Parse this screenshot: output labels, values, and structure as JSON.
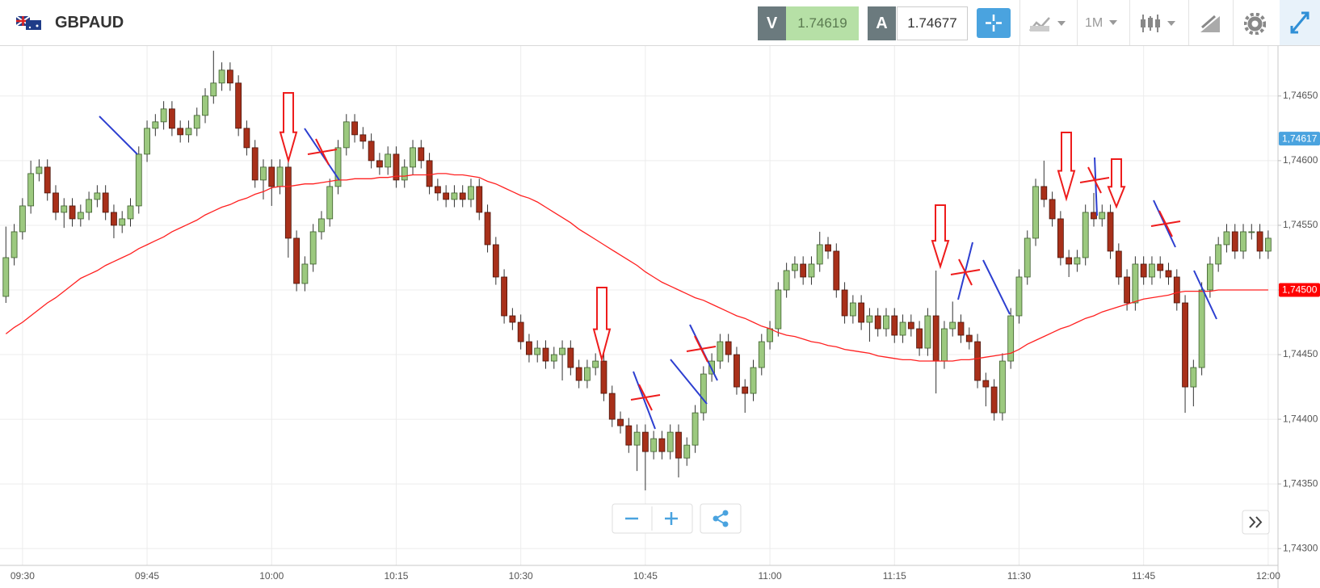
{
  "header": {
    "symbol": "GBPAUD",
    "sell": {
      "letter": "V",
      "price": "1.74619"
    },
    "buy": {
      "letter": "A",
      "price": "1.74677"
    },
    "timeframe": "1M"
  },
  "chart_data": {
    "type": "candlestick",
    "categories": [
      null,
      null,
      "09:30",
      null,
      null,
      null,
      null,
      null,
      null,
      null,
      null,
      null,
      null,
      null,
      null,
      null,
      null,
      "09:45",
      null,
      null,
      null,
      null,
      null,
      null,
      null,
      null,
      null,
      null,
      null,
      null,
      null,
      null,
      "10:00",
      null,
      null,
      null,
      null,
      null,
      null,
      null,
      null,
      null,
      null,
      null,
      null,
      null,
      null,
      "10:15",
      null,
      null,
      null,
      null,
      null,
      null,
      null,
      null,
      null,
      null,
      null,
      null,
      null,
      null,
      "10:30",
      null,
      null,
      null,
      null,
      null,
      null,
      null,
      null,
      null,
      null,
      null,
      null,
      null,
      null,
      "10:45",
      null,
      null,
      null,
      null,
      null,
      null,
      null,
      null,
      null,
      null,
      null,
      null,
      null,
      null,
      "11:00",
      null,
      null,
      null,
      null,
      null,
      null,
      null,
      null,
      null,
      null,
      null,
      null,
      null,
      null,
      "11:15",
      null,
      null,
      null,
      null,
      null,
      null,
      null,
      null,
      null,
      null,
      null,
      null,
      null,
      null,
      "11:30",
      null,
      null,
      null,
      null,
      null,
      null,
      null,
      null,
      null,
      null,
      null,
      null,
      null,
      null,
      "11:45",
      null,
      null,
      null,
      null,
      null,
      null,
      null,
      null,
      null,
      null,
      null,
      null,
      null,
      null,
      "12:00"
    ],
    "open": [
      1.74495,
      1.74525,
      1.74545,
      1.74565,
      1.7459,
      1.74595,
      1.74575,
      1.7456,
      1.74565,
      1.74555,
      1.7456,
      1.7457,
      1.74575,
      1.7456,
      1.7455,
      1.74555,
      1.74565,
      1.74605,
      1.74625,
      1.7463,
      1.7464,
      1.74625,
      1.7462,
      1.74625,
      1.74635,
      1.7465,
      1.7466,
      1.7467,
      1.7466,
      1.74625,
      1.7461,
      1.74585,
      1.74595,
      1.7458,
      1.74595,
      1.7454,
      1.74505,
      1.7452,
      1.74545,
      1.74555,
      1.7458,
      1.7461,
      1.7463,
      1.7462,
      1.74615,
      1.746,
      1.74595,
      1.74605,
      1.74585,
      1.74595,
      1.7461,
      1.746,
      1.7458,
      1.74575,
      1.7457,
      1.74575,
      1.7457,
      1.7458,
      1.7456,
      1.74535,
      1.7451,
      1.7448,
      1.74475,
      1.7446,
      1.7445,
      1.74455,
      1.74445,
      1.7445,
      1.74455,
      1.7444,
      1.7443,
      1.7444,
      1.74445,
      1.7442,
      1.744,
      1.74395,
      1.7438,
      1.7439,
      1.74375,
      1.74385,
      1.74375,
      1.7439,
      1.7437,
      1.7438,
      1.74405,
      1.74435,
      1.74445,
      1.7446,
      1.7445,
      1.74425,
      1.7442,
      1.7444,
      1.7446,
      1.7447,
      1.745,
      1.74515,
      1.7452,
      1.7451,
      1.7452,
      1.74535,
      1.7453,
      1.745,
      1.7448,
      1.7449,
      1.74475,
      1.7448,
      1.7447,
      1.7448,
      1.74465,
      1.74475,
      1.7447,
      1.74455,
      1.7448,
      1.74445,
      1.7447,
      1.74475,
      1.74465,
      1.7446,
      1.7443,
      1.74425,
      1.74405,
      1.74445,
      1.7448,
      1.7451,
      1.7454,
      1.7458,
      1.7457,
      1.74555,
      1.74525,
      1.7452,
      1.74525,
      1.7456,
      1.74555,
      1.7456,
      1.7453,
      1.7451,
      1.7449,
      1.7452,
      1.7451,
      1.7452,
      1.74515,
      1.7451,
      1.7449,
      1.74425,
      1.7444,
      1.745,
      1.7452,
      1.74535,
      1.74545,
      1.7453,
      1.74545,
      1.74545,
      1.7453
    ],
    "high": [
      1.74549,
      1.74551,
      1.74571,
      1.746,
      1.74601,
      1.74601,
      1.74581,
      1.74571,
      1.74571,
      1.74566,
      1.74576,
      1.74581,
      1.74581,
      1.74566,
      1.74561,
      1.74571,
      1.74611,
      1.74631,
      1.74636,
      1.74646,
      1.74646,
      1.74631,
      1.74631,
      1.74641,
      1.74656,
      1.74685,
      1.74676,
      1.74676,
      1.74666,
      1.74631,
      1.74616,
      1.74601,
      1.74601,
      1.74601,
      1.74601,
      1.74546,
      1.74526,
      1.74551,
      1.74561,
      1.74586,
      1.74616,
      1.74636,
      1.74636,
      1.74626,
      1.74621,
      1.74606,
      1.74611,
      1.74611,
      1.74601,
      1.74616,
      1.74616,
      1.74606,
      1.74586,
      1.74581,
      1.74581,
      1.74581,
      1.74586,
      1.74586,
      1.74566,
      1.74541,
      1.74516,
      1.74486,
      1.74481,
      1.74466,
      1.74461,
      1.74461,
      1.74456,
      1.74461,
      1.74461,
      1.74446,
      1.74446,
      1.74451,
      1.74451,
      1.74426,
      1.74406,
      1.74401,
      1.74396,
      1.74396,
      1.74391,
      1.74391,
      1.74396,
      1.74396,
      1.74386,
      1.74411,
      1.74441,
      1.74451,
      1.74466,
      1.74466,
      1.74456,
      1.74431,
      1.74446,
      1.74466,
      1.74476,
      1.74506,
      1.74521,
      1.74526,
      1.74526,
      1.74526,
      1.74545,
      1.74541,
      1.74536,
      1.74506,
      1.74496,
      1.74496,
      1.74486,
      1.74486,
      1.74486,
      1.74486,
      1.74481,
      1.74481,
      1.74476,
      1.74486,
      1.74515,
      1.74476,
      1.74491,
      1.74481,
      1.74471,
      1.74466,
      1.74436,
      1.74431,
      1.74451,
      1.74486,
      1.74516,
      1.74546,
      1.74586,
      1.746,
      1.74576,
      1.74561,
      1.74531,
      1.74531,
      1.74566,
      1.74575,
      1.74566,
      1.74566,
      1.74536,
      1.74516,
      1.74526,
      1.74526,
      1.74526,
      1.74526,
      1.74521,
      1.74516,
      1.74496,
      1.74446,
      1.74506,
      1.74526,
      1.74541,
      1.74551,
      1.74551,
      1.74551,
      1.74551,
      1.74551,
      1.74546
    ],
    "low": [
      1.7449,
      1.74519,
      1.74539,
      1.74559,
      1.74584,
      1.74569,
      1.74554,
      1.74548,
      1.74549,
      1.74549,
      1.74554,
      1.74564,
      1.74554,
      1.7454,
      1.74544,
      1.74549,
      1.74559,
      1.74599,
      1.74619,
      1.74624,
      1.74619,
      1.74614,
      1.74614,
      1.74619,
      1.74629,
      1.74644,
      1.74654,
      1.74654,
      1.74619,
      1.74604,
      1.74579,
      1.7457,
      1.74565,
      1.74574,
      1.74525,
      1.74499,
      1.74499,
      1.74514,
      1.74539,
      1.74549,
      1.74574,
      1.74604,
      1.74614,
      1.74609,
      1.74594,
      1.74589,
      1.74589,
      1.74579,
      1.74579,
      1.74589,
      1.74594,
      1.74574,
      1.74569,
      1.74564,
      1.74564,
      1.74564,
      1.74564,
      1.74554,
      1.74529,
      1.74504,
      1.74474,
      1.74469,
      1.74454,
      1.74444,
      1.74444,
      1.74439,
      1.74439,
      1.7443,
      1.74434,
      1.74424,
      1.74424,
      1.74434,
      1.74414,
      1.74394,
      1.74389,
      1.74374,
      1.7436,
      1.74345,
      1.74369,
      1.74369,
      1.74369,
      1.74355,
      1.74364,
      1.74374,
      1.74399,
      1.74429,
      1.74439,
      1.74444,
      1.74419,
      1.74405,
      1.74414,
      1.74434,
      1.74454,
      1.74464,
      1.74494,
      1.74509,
      1.74504,
      1.74504,
      1.74514,
      1.74524,
      1.74494,
      1.74474,
      1.74474,
      1.74469,
      1.7446,
      1.74464,
      1.74464,
      1.74459,
      1.74459,
      1.74464,
      1.74449,
      1.74449,
      1.7442,
      1.74439,
      1.74464,
      1.74459,
      1.74454,
      1.74424,
      1.7441,
      1.74399,
      1.74399,
      1.74439,
      1.74474,
      1.74504,
      1.74534,
      1.74564,
      1.74549,
      1.74519,
      1.7451,
      1.74514,
      1.74519,
      1.74549,
      1.74549,
      1.74524,
      1.74504,
      1.74484,
      1.74484,
      1.74504,
      1.74504,
      1.74509,
      1.74504,
      1.74484,
      1.74405,
      1.7441,
      1.74434,
      1.74494,
      1.74514,
      1.74529,
      1.74524,
      1.74524,
      1.74539,
      1.74524,
      1.74524
    ],
    "close": [
      1.74525,
      1.74545,
      1.74565,
      1.7459,
      1.74595,
      1.74575,
      1.7456,
      1.74565,
      1.74555,
      1.7456,
      1.7457,
      1.74575,
      1.7456,
      1.7455,
      1.74555,
      1.74565,
      1.74605,
      1.74625,
      1.7463,
      1.7464,
      1.74625,
      1.7462,
      1.74625,
      1.74635,
      1.7465,
      1.7466,
      1.7467,
      1.7466,
      1.74625,
      1.7461,
      1.74585,
      1.74595,
      1.7458,
      1.74595,
      1.7454,
      1.74505,
      1.7452,
      1.74545,
      1.74555,
      1.7458,
      1.7461,
      1.7463,
      1.7462,
      1.74615,
      1.746,
      1.74595,
      1.74605,
      1.74585,
      1.74595,
      1.7461,
      1.746,
      1.7458,
      1.74575,
      1.7457,
      1.74575,
      1.7457,
      1.7458,
      1.7456,
      1.74535,
      1.7451,
      1.7448,
      1.74475,
      1.7446,
      1.7445,
      1.74455,
      1.74445,
      1.7445,
      1.74455,
      1.7444,
      1.7443,
      1.7444,
      1.74445,
      1.7442,
      1.744,
      1.74395,
      1.7438,
      1.7439,
      1.74375,
      1.74385,
      1.74375,
      1.7439,
      1.7437,
      1.7438,
      1.74405,
      1.74435,
      1.74445,
      1.7446,
      1.7445,
      1.74425,
      1.7442,
      1.7444,
      1.7446,
      1.7447,
      1.745,
      1.74515,
      1.7452,
      1.7451,
      1.7452,
      1.74535,
      1.7453,
      1.745,
      1.7448,
      1.7449,
      1.74475,
      1.7448,
      1.7447,
      1.7448,
      1.74465,
      1.74475,
      1.7447,
      1.74455,
      1.7448,
      1.74445,
      1.7447,
      1.74475,
      1.74465,
      1.7446,
      1.7443,
      1.74425,
      1.74405,
      1.74445,
      1.7448,
      1.7451,
      1.7454,
      1.7458,
      1.7457,
      1.74555,
      1.74525,
      1.7452,
      1.74525,
      1.7456,
      1.74555,
      1.7456,
      1.7453,
      1.7451,
      1.7449,
      1.7452,
      1.7451,
      1.7452,
      1.74515,
      1.7451,
      1.7449,
      1.74425,
      1.7444,
      1.745,
      1.7452,
      1.74535,
      1.74545,
      1.7453,
      1.74545,
      1.74545,
      1.7453,
      1.7454
    ],
    "up_color": "#9cc97f",
    "down_color": "#a8301a",
    "ma": {
      "color": "#ff2020",
      "values": [
        1.74466,
        1.74471,
        1.74475,
        1.7448,
        1.74485,
        1.7449,
        1.74494,
        1.74499,
        1.74504,
        1.74509,
        1.74512,
        1.74515,
        1.74519,
        1.74522,
        1.74525,
        1.74528,
        1.74532,
        1.74535,
        1.74538,
        1.74541,
        1.74545,
        1.74548,
        1.74551,
        1.74554,
        1.74558,
        1.74561,
        1.74564,
        1.74566,
        1.74569,
        1.74571,
        1.74574,
        1.74576,
        1.74579,
        1.7458,
        1.7458,
        1.74581,
        1.74582,
        1.74582,
        1.74583,
        1.74584,
        1.74585,
        1.74585,
        1.74586,
        1.74586,
        1.74586,
        1.74587,
        1.74587,
        1.74588,
        1.74588,
        1.74589,
        1.74589,
        1.74589,
        1.7459,
        1.7459,
        1.74589,
        1.74589,
        1.74588,
        1.74587,
        1.74584,
        1.74582,
        1.74579,
        1.74576,
        1.74573,
        1.74571,
        1.74568,
        1.74564,
        1.7456,
        1.74556,
        1.74552,
        1.74547,
        1.74543,
        1.74539,
        1.74535,
        1.74531,
        1.74527,
        1.74523,
        1.74519,
        1.74514,
        1.7451,
        1.74506,
        1.74503,
        1.745,
        1.74497,
        1.74494,
        1.74492,
        1.74489,
        1.74486,
        1.74483,
        1.7448,
        1.74478,
        1.74475,
        1.74472,
        1.7447,
        1.74467,
        1.74465,
        1.74464,
        1.74462,
        1.7446,
        1.74459,
        1.74457,
        1.74456,
        1.74454,
        1.74453,
        1.74452,
        1.74451,
        1.74449,
        1.74448,
        1.74447,
        1.74446,
        1.74446,
        1.74445,
        1.74445,
        1.74445,
        1.74445,
        1.74445,
        1.74446,
        1.74446,
        1.74447,
        1.74448,
        1.74449,
        1.7445,
        1.74451,
        1.74454,
        1.74458,
        1.74461,
        1.74464,
        1.74467,
        1.7447,
        1.74472,
        1.74475,
        1.74478,
        1.7448,
        1.74483,
        1.74485,
        1.74487,
        1.74489,
        1.74491,
        1.74493,
        1.74494,
        1.74495,
        1.74496,
        1.74498,
        1.74499,
        1.74499,
        1.74499,
        1.74499,
        1.745,
        1.745,
        1.745,
        1.745,
        1.745,
        1.745,
        1.745
      ]
    },
    "ylim": [
      1.74287,
      1.74688
    ],
    "yticks": [
      {
        "value": 1.743,
        "label": "1,74300"
      },
      {
        "value": 1.7435,
        "label": "1,74350"
      },
      {
        "value": 1.744,
        "label": "1,74400"
      },
      {
        "value": 1.7445,
        "label": "1,74450"
      },
      {
        "value": 1.745,
        "label": "1,74500"
      },
      {
        "value": 1.7455,
        "label": "1,74550"
      },
      {
        "value": 1.746,
        "label": "1,74600"
      },
      {
        "value": 1.7465,
        "label": "1,74650"
      }
    ],
    "grid": true,
    "price_labels": [
      {
        "value": 1.74617,
        "label": "1,74617",
        "color": "#4aa3df"
      },
      {
        "value": 1.745,
        "label": "1,74500",
        "color": "#ff0000"
      }
    ]
  }
}
